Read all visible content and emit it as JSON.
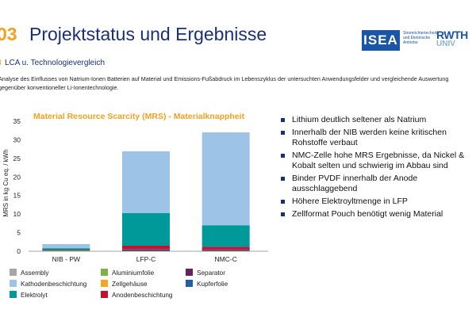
{
  "header": {
    "slide_number": "03",
    "title": "Projektstatus und Ergebnisse",
    "section_prefix": "3",
    "section_title": "LCA u. Technologievergleich",
    "intro": "Analyse des Einflusses von Natrium-Ionen Batterien auf Material und Emissions-Fußabdruck im Lebenszyklus der untersuchten Anwendungsfelder und vergleichende Auswertung gegenüber konventioneller Li-Ionentechnologie."
  },
  "logos": {
    "isea_text": "ISEA",
    "isea_sub": "Stromrichtertechnik und Elektrische Antriebe",
    "rwth_text": "RWTH",
    "rwth_sub": "UNIV"
  },
  "colors": {
    "accent_orange": "#f5a01e",
    "title_blue": "#1a2f7a"
  },
  "chart_data": {
    "type": "bar",
    "stacked": true,
    "title": "Material Resource Scarcity (MRS) - Materialknappheit",
    "xlabel": "",
    "ylabel": "MRS in kg Cu eq. / kWh",
    "ylim": [
      0,
      35
    ],
    "yticks": [
      0,
      5,
      10,
      15,
      20,
      25,
      30,
      35
    ],
    "grid": false,
    "categories": [
      "NIB - PW",
      "LFP-C",
      "NMC-C"
    ],
    "series": [
      {
        "name": "Assembly",
        "color": "#a6a6a6",
        "values": [
          0.02,
          0.05,
          0.05
        ]
      },
      {
        "name": "Aluminiumfolie",
        "color": "#7cb342",
        "values": [
          0.15,
          0.05,
          0.05
        ]
      },
      {
        "name": "Separator",
        "color": "#6b1f5f",
        "values": [
          0.1,
          0.4,
          0.3
        ]
      },
      {
        "name": "Kupferfolie",
        "color": "#1f5fa8",
        "values": [
          0.0,
          0.1,
          0.1
        ]
      },
      {
        "name": "Anodenbeschichtung",
        "color": "#c8102e",
        "values": [
          0.05,
          0.9,
          0.7
        ]
      },
      {
        "name": "Zellgehäuse",
        "color": "#f5a623",
        "values": [
          0.0,
          0.0,
          0.0
        ]
      },
      {
        "name": "Elektrolyt",
        "color": "#00999a",
        "values": [
          0.5,
          8.8,
          5.8
        ]
      },
      {
        "name": "Kathodenbeschichtung",
        "color": "#9dc3e6",
        "values": [
          1.1,
          16.6,
          25.0
        ]
      }
    ],
    "legend": {
      "placement": "bottom",
      "order": [
        [
          "Assembly",
          "Aluminiumfolie",
          "Separator"
        ],
        [
          "Kathodenbeschichtung",
          "Zellgehäuse",
          "Kupferfolie"
        ],
        [
          "Elektrolyt",
          "Anodenbeschichtung"
        ]
      ]
    }
  },
  "bullets": [
    "Lithium deutlich seltener als Natrium",
    "Innerhalb der NIB werden keine kritischen Rohstoffe verbaut",
    "NMC-Zelle hohe MRS Ergebnisse, da Nickel & Kobalt selten und schwierig im Abbau sind",
    "Binder PVDF innerhalb der Anode ausschlaggebend",
    "Höhere Elektroyltmenge in LFP",
    "Zellformat Pouch benötigt wenig Material"
  ]
}
